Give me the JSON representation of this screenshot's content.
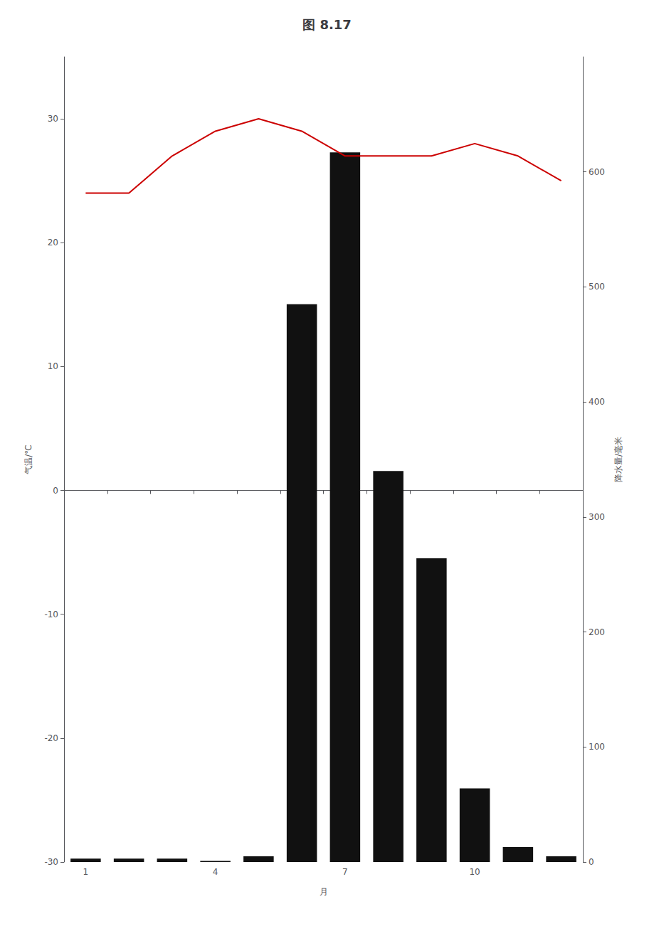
{
  "chart_data": {
    "type": "bar",
    "title": "图 8.17",
    "xlabel": "月",
    "ylabel": "气温/℃",
    "y2label": "降水量/毫米",
    "categories": [
      "1",
      null,
      null,
      "4",
      null,
      null,
      "7",
      null,
      null,
      "10",
      null,
      null
    ],
    "series": [
      {
        "type": "bar",
        "color": "#111111",
        "axis": "y2",
        "values": [
          3,
          3,
          3,
          1,
          5,
          485,
          617,
          340,
          264,
          64,
          13,
          5
        ]
      },
      {
        "type": "line",
        "color": "#cc0000",
        "values": [
          24,
          24,
          27,
          29,
          30,
          29,
          27,
          27,
          27,
          28,
          27,
          25
        ]
      }
    ],
    "ylim": [
      -30,
      35
    ],
    "yticks": [
      -30,
      -20,
      -10,
      0,
      10,
      20,
      30
    ],
    "y2lim": [
      0,
      700
    ],
    "y2ticks": [
      0,
      100,
      200,
      300,
      400,
      500,
      600
    ],
    "grid": false
  }
}
